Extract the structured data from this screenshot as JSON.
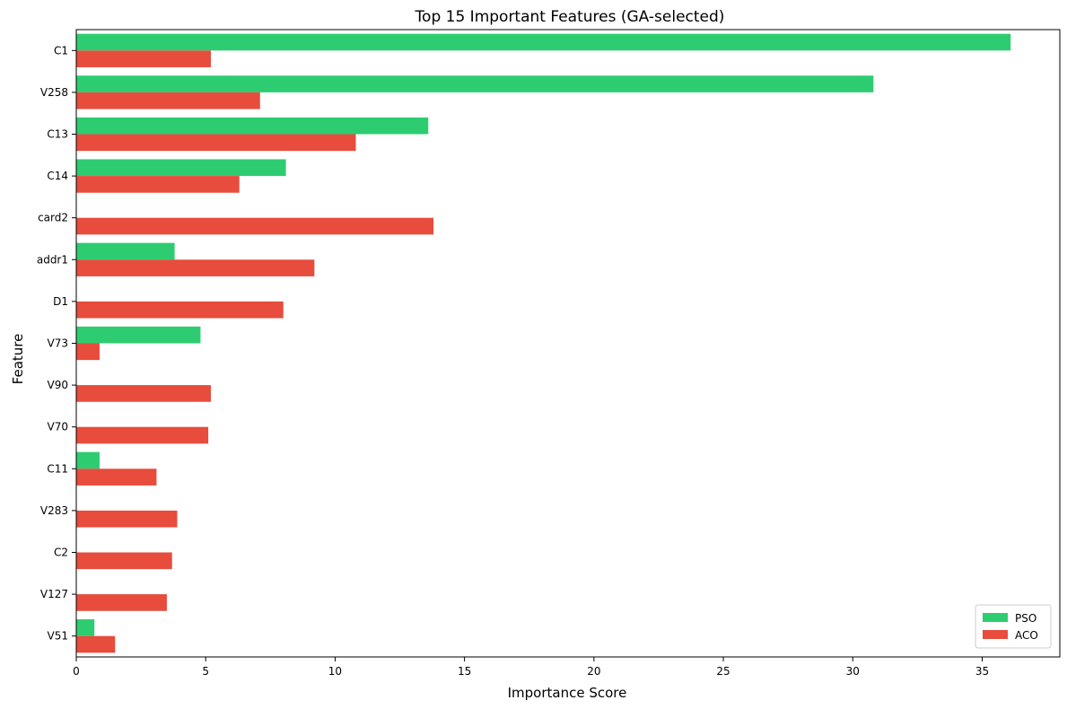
{
  "chart_data": {
    "type": "bar",
    "orientation": "horizontal",
    "title": "Top 15 Important Features (GA-selected)",
    "xlabel": "Importance Score",
    "ylabel": "Feature",
    "xlim": [
      0,
      38
    ],
    "xticks": [
      0,
      5,
      10,
      15,
      20,
      25,
      30,
      35
    ],
    "grid": false,
    "legend_position": "bottom-right",
    "categories": [
      "C1",
      "V258",
      "C13",
      "C14",
      "card2",
      "addr1",
      "D1",
      "V73",
      "V90",
      "V70",
      "C11",
      "V283",
      "C2",
      "V127",
      "V51"
    ],
    "series": [
      {
        "name": "PSO",
        "color": "#2ecc71",
        "values": [
          36.1,
          30.8,
          13.6,
          8.1,
          null,
          3.8,
          null,
          4.8,
          null,
          null,
          0.9,
          null,
          null,
          null,
          0.7
        ]
      },
      {
        "name": "ACO",
        "color": "#e74c3c",
        "values": [
          5.2,
          7.1,
          10.8,
          6.3,
          13.8,
          9.2,
          8.0,
          0.9,
          5.2,
          5.1,
          3.1,
          3.9,
          3.7,
          3.5,
          1.5
        ]
      }
    ]
  }
}
